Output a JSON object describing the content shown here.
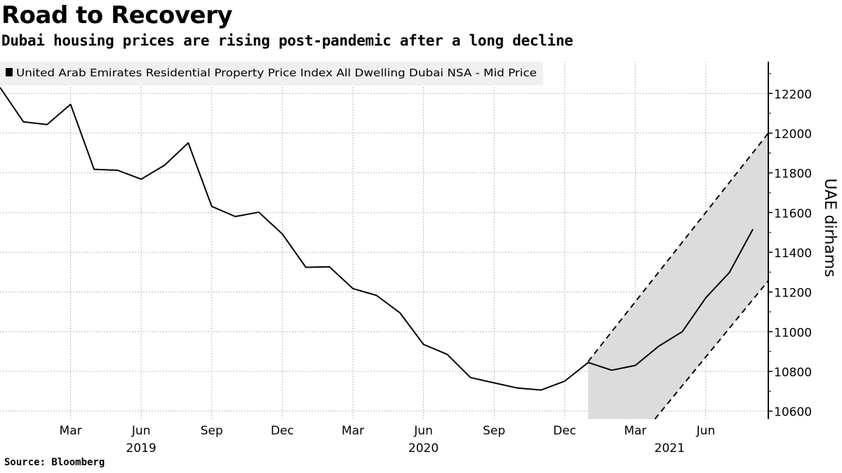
{
  "chart_data": {
    "type": "line",
    "title": "Road to Recovery",
    "subtitle": "Dubai housing prices are rising post-pandemic after a long decline",
    "source": "Source: Bloomberg",
    "ylabel": "UAE dirhams",
    "xlabel": "",
    "legend": {
      "position": "top-left",
      "entries": [
        "United Arab Emirates Residential Property Price Index All Dwelling Dubai NSA - Mid Price"
      ]
    },
    "grid": true,
    "ylim": [
      10560,
      12360
    ],
    "xlim": [
      "2018-12-01",
      "2021-08-21"
    ],
    "yticks": [
      10600,
      10800,
      11000,
      11200,
      11400,
      11600,
      11800,
      12000,
      12200
    ],
    "ytick_labels": [
      "10600",
      "10800",
      "11000",
      "11200",
      "11400",
      "11600",
      "11800",
      "12000",
      "12200"
    ],
    "xticks": [
      {
        "date": "2019-03",
        "label": "Mar",
        "year": ""
      },
      {
        "date": "2019-06",
        "label": "Jun",
        "year": "2019"
      },
      {
        "date": "2019-09",
        "label": "Sep",
        "year": ""
      },
      {
        "date": "2019-12",
        "label": "Dec",
        "year": ""
      },
      {
        "date": "2020-03",
        "label": "Mar",
        "year": ""
      },
      {
        "date": "2020-06",
        "label": "Jun",
        "year": "2020"
      },
      {
        "date": "2020-09",
        "label": "Sep",
        "year": ""
      },
      {
        "date": "2020-12",
        "label": "Dec",
        "year": ""
      },
      {
        "date": "2021-03",
        "label": "Mar",
        "year": ""
      },
      {
        "date": "2021-06",
        "label": "Jun",
        "year": ""
      }
    ],
    "year_labels": [
      {
        "date": "2019-06",
        "label": "2019"
      },
      {
        "date": "2020-06",
        "label": "2020"
      },
      {
        "date": "2021-04-15",
        "label": "2021"
      }
    ],
    "series": [
      {
        "color": "#000000",
        "x": [
          "2018-12",
          "2019-01",
          "2019-02",
          "2019-03",
          "2019-04",
          "2019-05",
          "2019-06",
          "2019-07",
          "2019-08",
          "2019-09",
          "2019-10",
          "2019-11",
          "2019-12",
          "2020-01",
          "2020-02",
          "2020-03",
          "2020-04",
          "2020-05",
          "2020-06",
          "2020-07",
          "2020-08",
          "2020-09",
          "2020-10",
          "2020-11",
          "2020-12",
          "2021-01",
          "2021-02",
          "2021-03",
          "2021-04",
          "2021-05",
          "2021-06",
          "2021-07",
          "2021-08"
        ],
        "values": [
          12230,
          12057,
          12043,
          12145,
          11818,
          11813,
          11768,
          11839,
          11951,
          11631,
          11580,
          11602,
          11492,
          11324,
          11327,
          11217,
          11183,
          11095,
          10936,
          10886,
          10769,
          10742,
          10716,
          10706,
          10751,
          10845,
          10806,
          10830,
          10927,
          11000,
          11171,
          11298,
          11516
        ]
      }
    ],
    "trend_band": {
      "fill": "#dcdcdc",
      "upper": [
        [
          "2021-01",
          10850
        ],
        [
          "2021-08-21",
          12000
        ]
      ],
      "lower": [
        [
          "2021-01",
          10150
        ],
        [
          "2021-08-21",
          11257
        ]
      ]
    }
  }
}
